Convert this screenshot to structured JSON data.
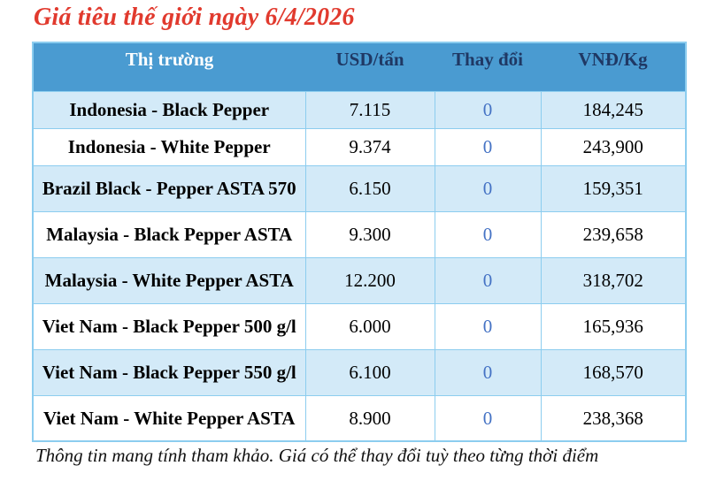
{
  "title": "Giá tiêu thế giới ngày 6/4/2026",
  "table": {
    "headers": [
      "Thị trường",
      "USD/tấn",
      "Thay đổi",
      "VNĐ/Kg"
    ],
    "rows": [
      {
        "market": "Indonesia - Black Pepper",
        "usd": "7.115",
        "change": "0",
        "vnd": "184,245"
      },
      {
        "market": "Indonesia - White Pepper",
        "usd": "9.374",
        "change": "0",
        "vnd": "243,900"
      },
      {
        "market": "Brazil Black - Pepper ASTA 570",
        "usd": "6.150",
        "change": "0",
        "vnd": "159,351"
      },
      {
        "market": "Malaysia - Black Pepper ASTA",
        "usd": "9.300",
        "change": "0",
        "vnd": "239,658"
      },
      {
        "market": "Malaysia - White Pepper ASTA",
        "usd": "12.200",
        "change": "0",
        "vnd": "318,702"
      },
      {
        "market": "Viet Nam - Black Pepper 500 g/l",
        "usd": "6.000",
        "change": "0",
        "vnd": "165,936"
      },
      {
        "market": "Viet Nam - Black Pepper 550 g/l",
        "usd": "6.100",
        "change": "0",
        "vnd": "168,570"
      },
      {
        "market": "Viet Nam - White Pepper ASTA",
        "usd": "8.900",
        "change": "0",
        "vnd": "238,368"
      }
    ]
  },
  "footer": "Thông tin mang tính tham khảo. Giá có thể thay đổi tuỳ theo từng thời điểm",
  "colors": {
    "title_red": "#e13a2e",
    "header_bg": "#4a9bd1",
    "header_text_navy": "#1f3864",
    "header_text_white": "#ffffff",
    "row_alt_bg": "#d3eaf8",
    "row_plain_bg": "#ffffff",
    "cell_border": "#8ccdef",
    "change_value_blue": "#4472c4",
    "body_text": "#000000"
  }
}
